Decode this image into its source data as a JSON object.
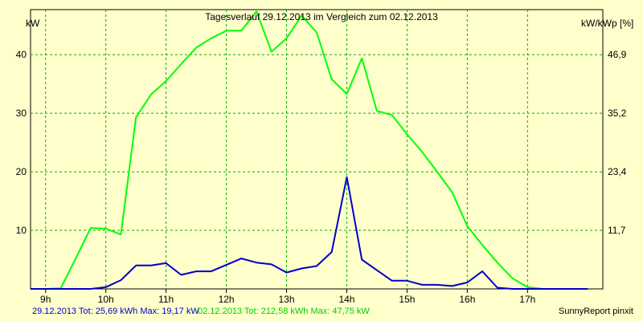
{
  "chart_data": {
    "type": "line",
    "title": "Tagesverlauf 29.12.2013 im Vergleich zum 02.12.2013",
    "ylabel_left": "kW",
    "ylabel_right": "kW/kWp [%]",
    "x_ticks": [
      "9h",
      "10h",
      "11h",
      "12h",
      "13h",
      "14h",
      "15h",
      "16h",
      "17h"
    ],
    "y_ticks_left": [
      "10",
      "20",
      "30",
      "40"
    ],
    "y_ticks_right": [
      "11,7",
      "23,4",
      "35,2",
      "46,9"
    ],
    "xlim": [
      8.75,
      18.25
    ],
    "ylim": [
      0,
      47.7
    ],
    "grid": true,
    "series": [
      {
        "name": "02.12.2013",
        "color": "#00ff00",
        "x": [
          8.75,
          9.0,
          9.25,
          9.5,
          9.75,
          10.0,
          10.25,
          10.5,
          10.75,
          11.0,
          11.25,
          11.5,
          11.75,
          12.0,
          12.25,
          12.5,
          12.75,
          13.0,
          13.25,
          13.5,
          13.75,
          14.0,
          14.25,
          14.5,
          14.75,
          15.0,
          15.25,
          15.5,
          15.75,
          16.0,
          16.25,
          16.5,
          16.75,
          17.0,
          17.25,
          17.5,
          17.75,
          18.0
        ],
        "values": [
          0,
          0,
          0.1,
          5.2,
          10.4,
          10.3,
          9.3,
          29.3,
          33.2,
          35.5,
          38.4,
          41.2,
          42.8,
          44.1,
          44.1,
          47.4,
          40.5,
          42.8,
          46.7,
          43.8,
          35.8,
          33.3,
          39.4,
          30.4,
          29.7,
          26.4,
          23.4,
          20,
          16.5,
          10.7,
          7.5,
          4.5,
          1.8,
          0.3,
          0,
          0,
          0,
          0
        ]
      },
      {
        "name": "29.12.2013",
        "color": "#0000cc",
        "x": [
          8.75,
          9.0,
          9.25,
          9.5,
          9.75,
          10.0,
          10.25,
          10.5,
          10.75,
          11.0,
          11.25,
          11.5,
          11.75,
          12.0,
          12.25,
          12.5,
          12.75,
          13.0,
          13.25,
          13.5,
          13.75,
          14.0,
          14.25,
          14.5,
          14.75,
          15.0,
          15.25,
          15.5,
          15.75,
          16.0,
          16.25,
          16.5,
          16.75,
          17.0,
          17.25,
          17.5,
          17.75,
          18.0
        ],
        "values": [
          0,
          0,
          0,
          0,
          0,
          0.3,
          1.5,
          4.0,
          4.0,
          4.4,
          2.4,
          3.0,
          3.0,
          4.1,
          5.2,
          4.5,
          4.2,
          2.8,
          3.5,
          3.9,
          6.3,
          19.1,
          5.0,
          3.2,
          1.4,
          1.4,
          0.7,
          0.7,
          0.5,
          1.1,
          3.0,
          0.2,
          0,
          0,
          0,
          0,
          0,
          0
        ]
      }
    ]
  },
  "footer": {
    "series1_text": "29.12.2013 Tot: 25,69 kWh Max: 19,17 kW",
    "series1_color": "#0000cc",
    "series2_text": "02.12.2013 Tot: 212,58 kWh Max: 47,75 kW",
    "series2_color": "#00cc00",
    "credit": "SunnyReport pinxit"
  }
}
